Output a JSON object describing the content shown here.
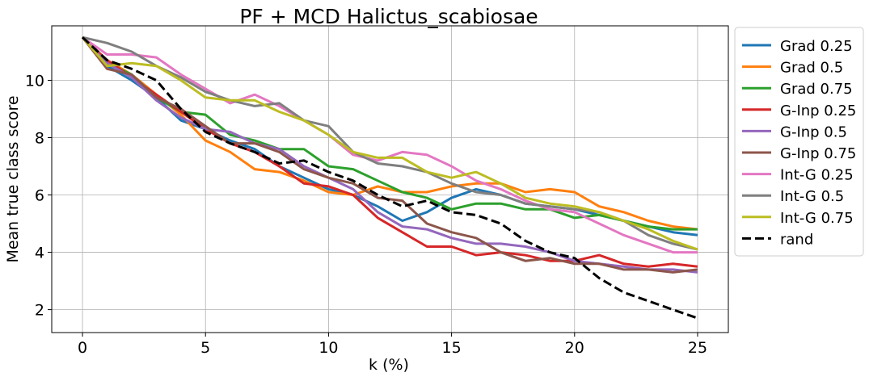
{
  "chart_data": {
    "type": "line",
    "title": "PF + MCD Halictus_scabiosae",
    "xlabel": "k (%)",
    "ylabel": "Mean true class score",
    "xlim": [
      -1.25,
      26.25
    ],
    "ylim": [
      1.2,
      11.9
    ],
    "xticks": [
      0,
      5,
      10,
      15,
      20,
      25
    ],
    "yticks": [
      2,
      4,
      6,
      8,
      10
    ],
    "grid": true,
    "legend_position": "right, outside plot",
    "series": [
      {
        "name": "Grad 0.25",
        "color": "#1f77b4",
        "style": "solid",
        "x": [
          0,
          1,
          2,
          3,
          4,
          5,
          6,
          7,
          8,
          9,
          10,
          11,
          12,
          13,
          14,
          15,
          16,
          17,
          18,
          19,
          20,
          21,
          22,
          23,
          24,
          25
        ],
        "y": [
          11.5,
          10.5,
          10.0,
          9.4,
          8.6,
          8.3,
          7.9,
          7.6,
          7.0,
          6.6,
          6.2,
          6.0,
          5.6,
          5.1,
          5.4,
          5.9,
          6.2,
          6.0,
          5.7,
          5.6,
          5.5,
          5.3,
          5.1,
          4.9,
          4.7,
          4.6
        ]
      },
      {
        "name": "Grad 0.5",
        "color": "#ff7f0e",
        "style": "solid",
        "x": [
          0,
          1,
          2,
          3,
          4,
          5,
          6,
          7,
          8,
          9,
          10,
          11,
          12,
          13,
          14,
          15,
          16,
          17,
          18,
          19,
          20,
          21,
          22,
          23,
          24,
          25
        ],
        "y": [
          11.5,
          10.7,
          10.2,
          9.5,
          8.8,
          7.9,
          7.5,
          6.9,
          6.8,
          6.5,
          6.1,
          6.0,
          6.3,
          6.1,
          6.1,
          6.3,
          6.4,
          6.4,
          6.1,
          6.2,
          6.1,
          5.6,
          5.4,
          5.1,
          4.9,
          4.8
        ]
      },
      {
        "name": "Grad 0.75",
        "color": "#2ca02c",
        "style": "solid",
        "x": [
          0,
          1,
          2,
          3,
          4,
          5,
          6,
          7,
          8,
          9,
          10,
          11,
          12,
          13,
          14,
          15,
          16,
          17,
          18,
          19,
          20,
          21,
          22,
          23,
          24,
          25
        ],
        "y": [
          11.5,
          10.6,
          10.2,
          9.4,
          8.9,
          8.8,
          8.1,
          7.9,
          7.6,
          7.6,
          7.0,
          6.9,
          6.5,
          6.1,
          5.9,
          5.5,
          5.7,
          5.7,
          5.5,
          5.5,
          5.2,
          5.3,
          5.1,
          4.9,
          4.8,
          4.8
        ]
      },
      {
        "name": "G-Inp 0.25",
        "color": "#d62728",
        "style": "solid",
        "x": [
          0,
          1,
          2,
          3,
          4,
          5,
          6,
          7,
          8,
          9,
          10,
          11,
          12,
          13,
          14,
          15,
          16,
          17,
          18,
          19,
          20,
          21,
          22,
          23,
          24,
          25
        ],
        "y": [
          11.5,
          10.7,
          10.1,
          9.5,
          8.9,
          8.3,
          7.8,
          7.5,
          7.0,
          6.4,
          6.3,
          6.0,
          5.2,
          4.7,
          4.2,
          4.2,
          3.9,
          4.0,
          3.9,
          3.7,
          3.7,
          3.9,
          3.6,
          3.5,
          3.6,
          3.5
        ]
      },
      {
        "name": "G-Inp 0.5",
        "color": "#9467bd",
        "style": "solid",
        "x": [
          0,
          1,
          2,
          3,
          4,
          5,
          6,
          7,
          8,
          9,
          10,
          11,
          12,
          13,
          14,
          15,
          16,
          17,
          18,
          19,
          20,
          21,
          22,
          23,
          24,
          25
        ],
        "y": [
          11.5,
          10.6,
          10.1,
          9.3,
          8.7,
          8.3,
          8.2,
          7.8,
          7.6,
          7.0,
          6.6,
          6.2,
          5.4,
          4.9,
          4.8,
          4.5,
          4.3,
          4.3,
          4.2,
          4.0,
          3.7,
          3.6,
          3.5,
          3.4,
          3.4,
          3.3
        ]
      },
      {
        "name": "G-Inp 0.75",
        "color": "#8c564b",
        "style": "solid",
        "x": [
          0,
          1,
          2,
          3,
          4,
          5,
          6,
          7,
          8,
          9,
          10,
          11,
          12,
          13,
          14,
          15,
          16,
          17,
          18,
          19,
          20,
          21,
          22,
          23,
          24,
          25
        ],
        "y": [
          11.5,
          10.4,
          10.2,
          9.4,
          9.0,
          8.4,
          7.8,
          7.8,
          7.5,
          6.9,
          6.6,
          6.4,
          5.9,
          5.8,
          5.0,
          4.7,
          4.5,
          4.0,
          3.7,
          3.8,
          3.6,
          3.6,
          3.4,
          3.4,
          3.3,
          3.4
        ]
      },
      {
        "name": "Int-G 0.25",
        "color": "#e377c2",
        "style": "solid",
        "x": [
          0,
          1,
          2,
          3,
          4,
          5,
          6,
          7,
          8,
          9,
          10,
          11,
          12,
          13,
          14,
          15,
          16,
          17,
          18,
          19,
          20,
          21,
          22,
          23,
          24,
          25
        ],
        "y": [
          11.5,
          10.9,
          10.9,
          10.8,
          10.2,
          9.7,
          9.2,
          9.5,
          9.1,
          8.6,
          8.1,
          7.4,
          7.2,
          7.5,
          7.4,
          7.0,
          6.5,
          6.2,
          5.8,
          5.5,
          5.4,
          5.0,
          4.6,
          4.3,
          4.0,
          4.0
        ]
      },
      {
        "name": "Int-G 0.5",
        "color": "#7f7f7f",
        "style": "solid",
        "x": [
          0,
          1,
          2,
          3,
          4,
          5,
          6,
          7,
          8,
          9,
          10,
          11,
          12,
          13,
          14,
          15,
          16,
          17,
          18,
          19,
          20,
          21,
          22,
          23,
          24,
          25
        ],
        "y": [
          11.5,
          11.3,
          11.0,
          10.5,
          10.1,
          9.6,
          9.3,
          9.1,
          9.2,
          8.6,
          8.4,
          7.5,
          7.1,
          7.0,
          6.8,
          6.4,
          6.1,
          6.0,
          5.7,
          5.6,
          5.5,
          5.4,
          5.1,
          4.6,
          4.3,
          4.1
        ]
      },
      {
        "name": "Int-G 0.75",
        "color": "#bcbd22",
        "style": "solid",
        "x": [
          0,
          1,
          2,
          3,
          4,
          5,
          6,
          7,
          8,
          9,
          10,
          11,
          12,
          13,
          14,
          15,
          16,
          17,
          18,
          19,
          20,
          21,
          22,
          23,
          24,
          25
        ],
        "y": [
          11.5,
          10.5,
          10.6,
          10.5,
          10.0,
          9.4,
          9.3,
          9.3,
          8.9,
          8.6,
          8.1,
          7.5,
          7.3,
          7.3,
          6.8,
          6.6,
          6.8,
          6.4,
          5.9,
          5.7,
          5.6,
          5.4,
          5.1,
          4.8,
          4.4,
          4.1
        ]
      },
      {
        "name": "rand",
        "color": "#000000",
        "style": "dashed",
        "x": [
          0,
          1,
          2,
          3,
          4,
          5,
          6,
          7,
          8,
          9,
          10,
          11,
          12,
          13,
          14,
          15,
          16,
          17,
          18,
          19,
          20,
          21,
          22,
          23,
          24,
          25
        ],
        "y": [
          11.5,
          10.7,
          10.4,
          10.0,
          9.0,
          8.2,
          7.8,
          7.5,
          7.1,
          7.2,
          6.8,
          6.5,
          6.0,
          5.6,
          5.8,
          5.4,
          5.3,
          5.0,
          4.4,
          4.0,
          3.8,
          3.1,
          2.6,
          2.3,
          2.0,
          1.7
        ]
      }
    ]
  }
}
